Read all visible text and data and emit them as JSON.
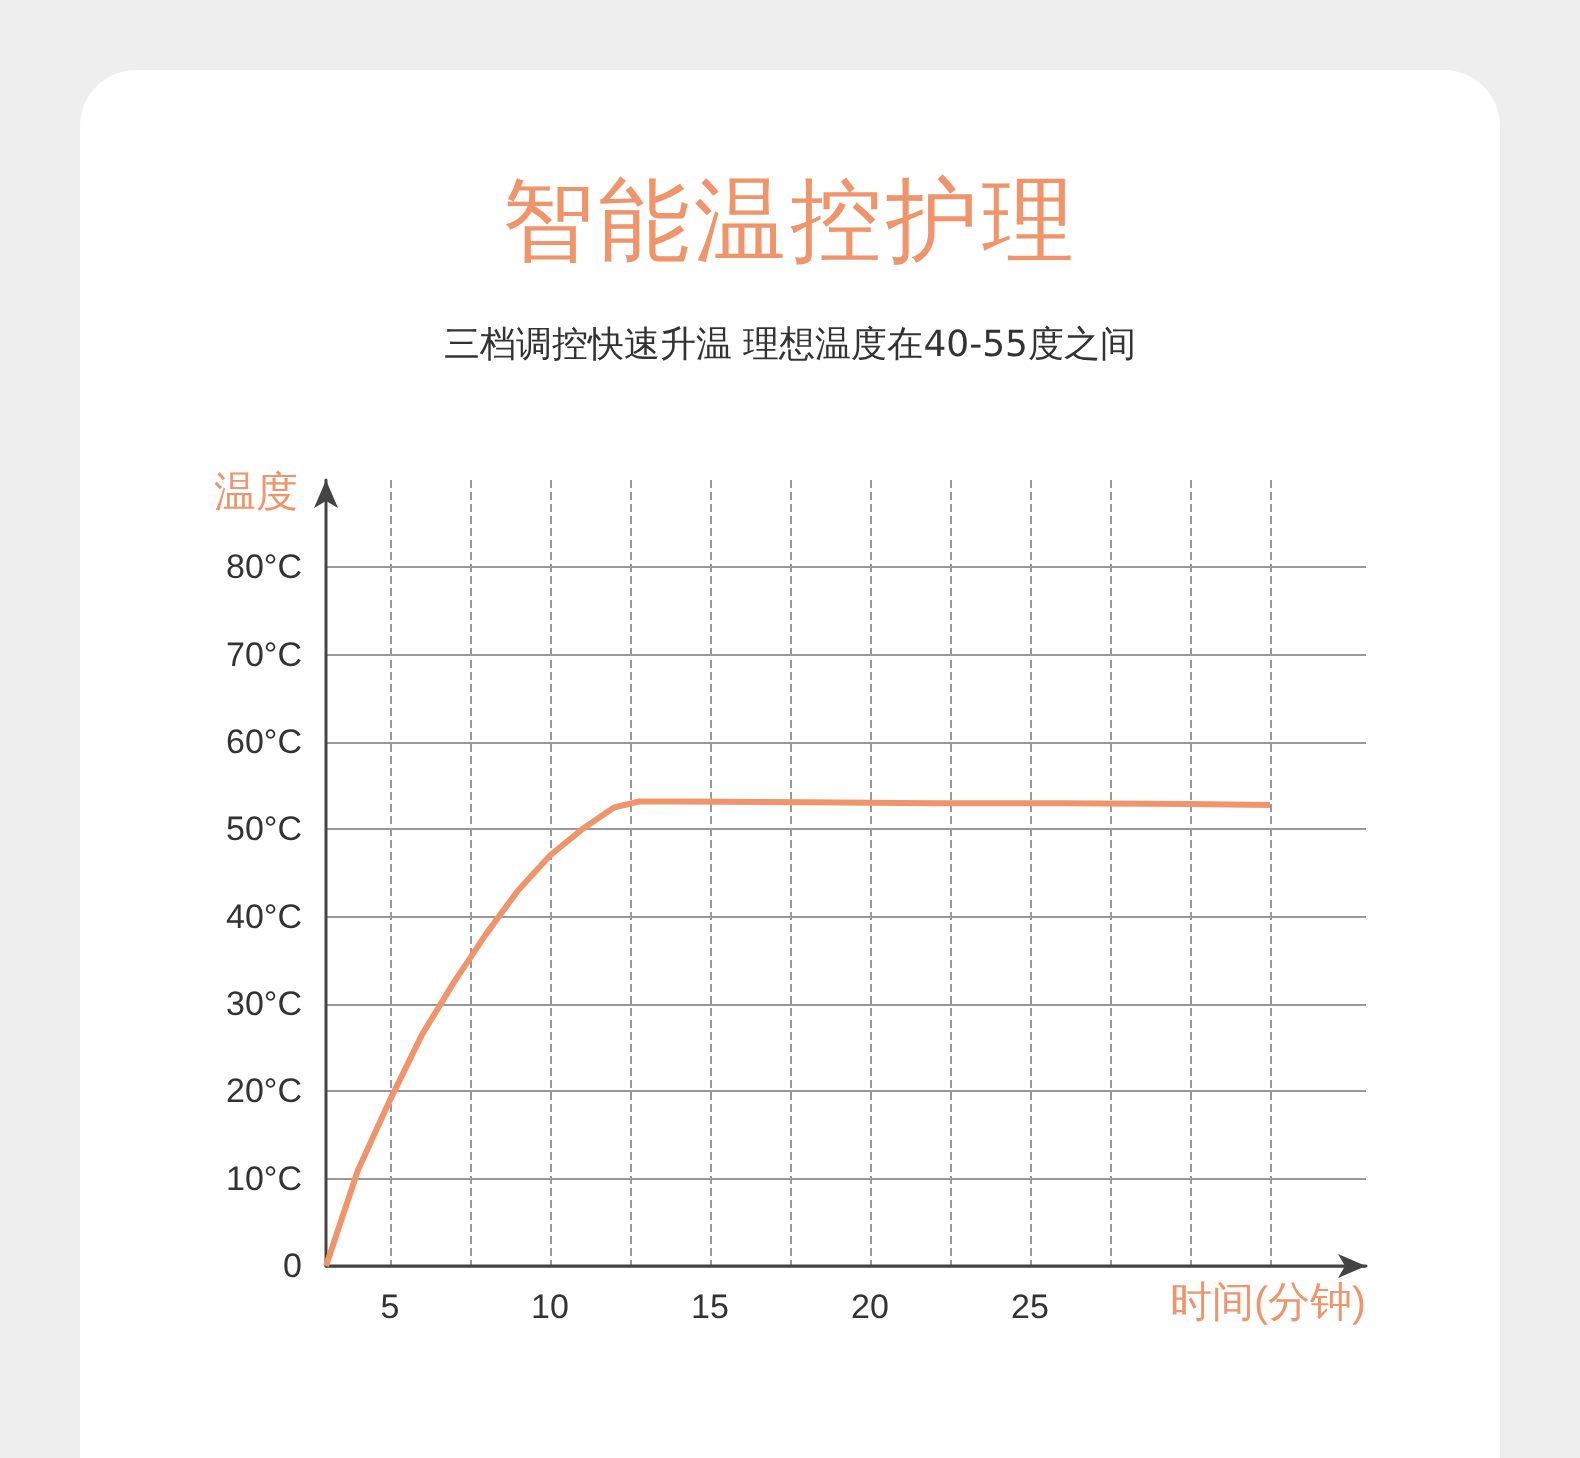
{
  "chart_data": {
    "type": "line",
    "title": "智能温控护理",
    "subtitle": "三档调控快速升温 理想温度在40-55度之间",
    "xlabel": "时间(分钟)",
    "ylabel": "温度",
    "x": [
      3,
      4,
      5,
      6,
      7,
      8,
      9,
      10,
      11,
      12,
      12.8,
      14,
      18,
      22,
      26,
      30,
      32.5
    ],
    "series": [
      {
        "color": "#f0956b",
        "values": [
          0,
          11,
          19,
          26.5,
          32.5,
          38,
          43,
          47,
          50,
          52.5,
          53.2,
          53.2,
          53.1,
          53,
          53,
          52.9,
          52.8
        ]
      }
    ],
    "xlim": [
      3,
      35.5
    ],
    "xticks": [
      5,
      {
        "value": 7.5,
        "label": null
      },
      10,
      {
        "value": 12.5,
        "label": null
      },
      15,
      {
        "value": 17.5,
        "label": null
      },
      20,
      {
        "value": 22.5,
        "label": null
      },
      25,
      {
        "value": 27.5,
        "label": null
      },
      {
        "value": 30,
        "label": null
      },
      {
        "value": 32.5,
        "label": null
      }
    ],
    "ylim": [
      0,
      90
    ],
    "yticks": [
      0,
      {
        "value": 10,
        "label": "10°C"
      },
      {
        "value": 20,
        "label": "20°C"
      },
      {
        "value": 30,
        "label": "30°C"
      },
      {
        "value": 40,
        "label": "40°C"
      },
      {
        "value": 50,
        "label": "50°C"
      },
      {
        "value": 60,
        "label": "60°C"
      },
      {
        "value": 70,
        "label": "70°C"
      },
      {
        "value": 80,
        "label": "80°C"
      }
    ],
    "grid": true,
    "marker": "none",
    "line_style": "solid"
  }
}
